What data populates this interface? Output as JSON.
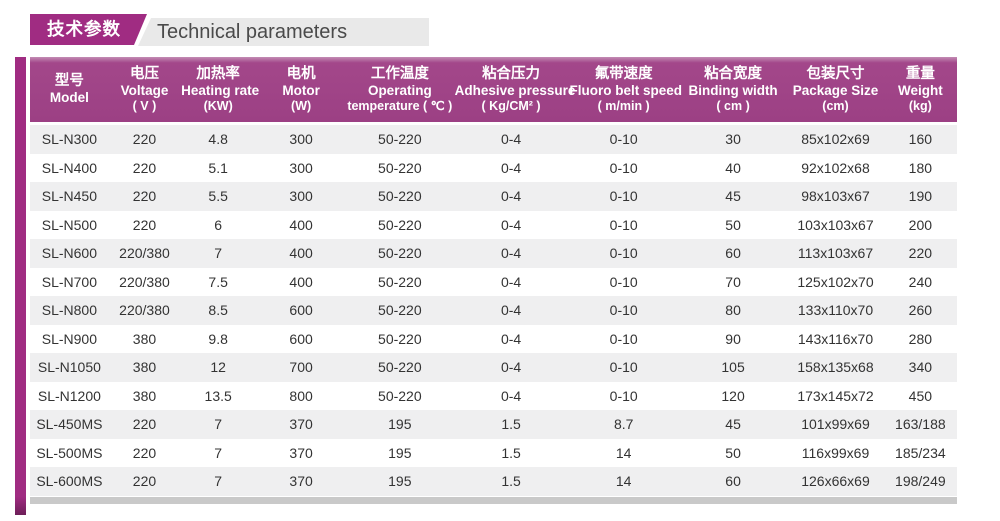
{
  "title": {
    "zh": "技术参数",
    "en": "Technical parameters"
  },
  "colors": {
    "badge_magenta": "#a02c82",
    "header_magenta": "#a3478a",
    "row_alt_gray": "#efeff0",
    "strip_gray": "#e9e9e9",
    "bottom_bar_gray": "#c9c9c9"
  },
  "table": {
    "col_widths_pct": [
      8.5,
      7.7,
      8.2,
      9.7,
      11.6,
      12.4,
      11.9,
      11.7,
      10.4,
      7.9
    ],
    "columns": [
      {
        "zh": "型号",
        "en": "Model",
        "unit": ""
      },
      {
        "zh": "电压",
        "en": "Voltage",
        "unit": "( V )"
      },
      {
        "zh": "加热率",
        "en": "Heating rate",
        "unit": "(KW)"
      },
      {
        "zh": "电机",
        "en": "Motor",
        "unit": "(W)"
      },
      {
        "zh": "工作温度",
        "en": "Operating",
        "unit": "temperature ( ℃ )"
      },
      {
        "zh": "粘合压力",
        "en": "Adhesive pressure",
        "unit": "( Kg/CM² )"
      },
      {
        "zh": "氟带速度",
        "en": "Fluoro belt speed",
        "unit": "( m/min )"
      },
      {
        "zh": "粘合宽度",
        "en": "Binding width",
        "unit": "( cm )"
      },
      {
        "zh": "包装尺寸",
        "en": "Package Size",
        "unit": "(cm)"
      },
      {
        "zh": "重量",
        "en": "Weight",
        "unit": "(kg)"
      }
    ],
    "rows": [
      [
        "SL-N300",
        "220",
        "4.8",
        "300",
        "50-220",
        "0-4",
        "0-10",
        "30",
        "85x102x69",
        "160"
      ],
      [
        "SL-N400",
        "220",
        "5.1",
        "300",
        "50-220",
        "0-4",
        "0-10",
        "40",
        "92x102x68",
        "180"
      ],
      [
        "SL-N450",
        "220",
        "5.5",
        "300",
        "50-220",
        "0-4",
        "0-10",
        "45",
        "98x103x67",
        "190"
      ],
      [
        "SL-N500",
        "220",
        "6",
        "400",
        "50-220",
        "0-4",
        "0-10",
        "50",
        "103x103x67",
        "200"
      ],
      [
        "SL-N600",
        "220/380",
        "7",
        "400",
        "50-220",
        "0-4",
        "0-10",
        "60",
        "113x103x67",
        "220"
      ],
      [
        "SL-N700",
        "220/380",
        "7.5",
        "400",
        "50-220",
        "0-4",
        "0-10",
        "70",
        "125x102x70",
        "240"
      ],
      [
        "SL-N800",
        "220/380",
        "8.5",
        "600",
        "50-220",
        "0-4",
        "0-10",
        "80",
        "133x110x70",
        "260"
      ],
      [
        "SL-N900",
        "380",
        "9.8",
        "600",
        "50-220",
        "0-4",
        "0-10",
        "90",
        "143x116x70",
        "280"
      ],
      [
        "SL-N1050",
        "380",
        "12",
        "700",
        "50-220",
        "0-4",
        "0-10",
        "105",
        "158x135x68",
        "340"
      ],
      [
        "SL-N1200",
        "380",
        "13.5",
        "800",
        "50-220",
        "0-4",
        "0-10",
        "120",
        "173x145x72",
        "450"
      ],
      [
        "SL-450MS",
        "220",
        "7",
        "370",
        "195",
        "1.5",
        "8.7",
        "45",
        "101x99x69",
        "163/188"
      ],
      [
        "SL-500MS",
        "220",
        "7",
        "370",
        "195",
        "1.5",
        "14",
        "50",
        "116x99x69",
        "185/234"
      ],
      [
        "SL-600MS",
        "220",
        "7",
        "370",
        "195",
        "1.5",
        "14",
        "60",
        "126x66x69",
        "198/249"
      ]
    ]
  }
}
